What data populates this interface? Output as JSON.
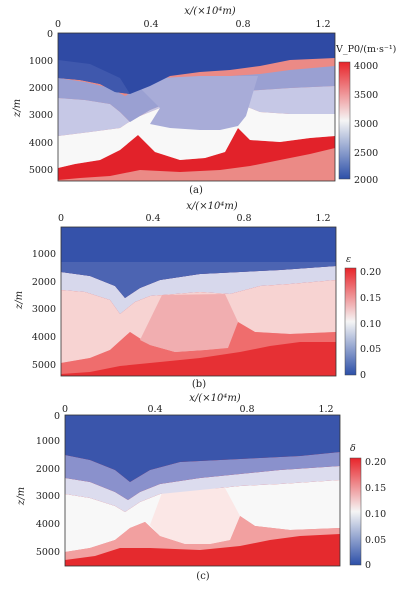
{
  "figure": {
    "panels": [
      {
        "caption": "(a)",
        "x_axis_label": "x/(×10⁴m)",
        "y_axis_label": "z/m",
        "x_ticks": [
          "0",
          "0.4",
          "0.8",
          "1.2"
        ],
        "y_ticks": [
          "0",
          "1000",
          "2000",
          "3000",
          "4000",
          "5000"
        ],
        "colorbar": {
          "label": "V_P0/(m·s⁻¹)",
          "ticks": [
            "4000",
            "3500",
            "3000",
            "2500",
            "2000"
          ]
        }
      },
      {
        "caption": "(b)",
        "x_axis_label": "x/(×10⁴m)",
        "y_axis_label": "z/m",
        "x_ticks": [
          "0",
          "0.4",
          "0.8",
          "1.2"
        ],
        "y_ticks": [
          "1000",
          "2000",
          "3000",
          "4000",
          "5000"
        ],
        "colorbar": {
          "label": "ε",
          "ticks": [
            "0.20",
            "0.15",
            "0.10",
            "0.05",
            "0"
          ]
        }
      },
      {
        "caption": "(c)",
        "x_axis_label": "x/(×10⁴m)",
        "y_axis_label": "z/m",
        "x_ticks": [
          "0",
          "0.4",
          "0.8",
          "1.2"
        ],
        "y_ticks": [
          "0",
          "1000",
          "2000",
          "3000",
          "4000",
          "5000"
        ],
        "colorbar": {
          "label": "δ",
          "ticks": [
            "0.20",
            "0.15",
            "0.10",
            "0.05",
            "0"
          ]
        }
      }
    ],
    "colors": {
      "bar_top": "#e8242a",
      "bar_mid": "#f5f5f5",
      "bar_bottom": "#2c4fa8"
    }
  }
}
